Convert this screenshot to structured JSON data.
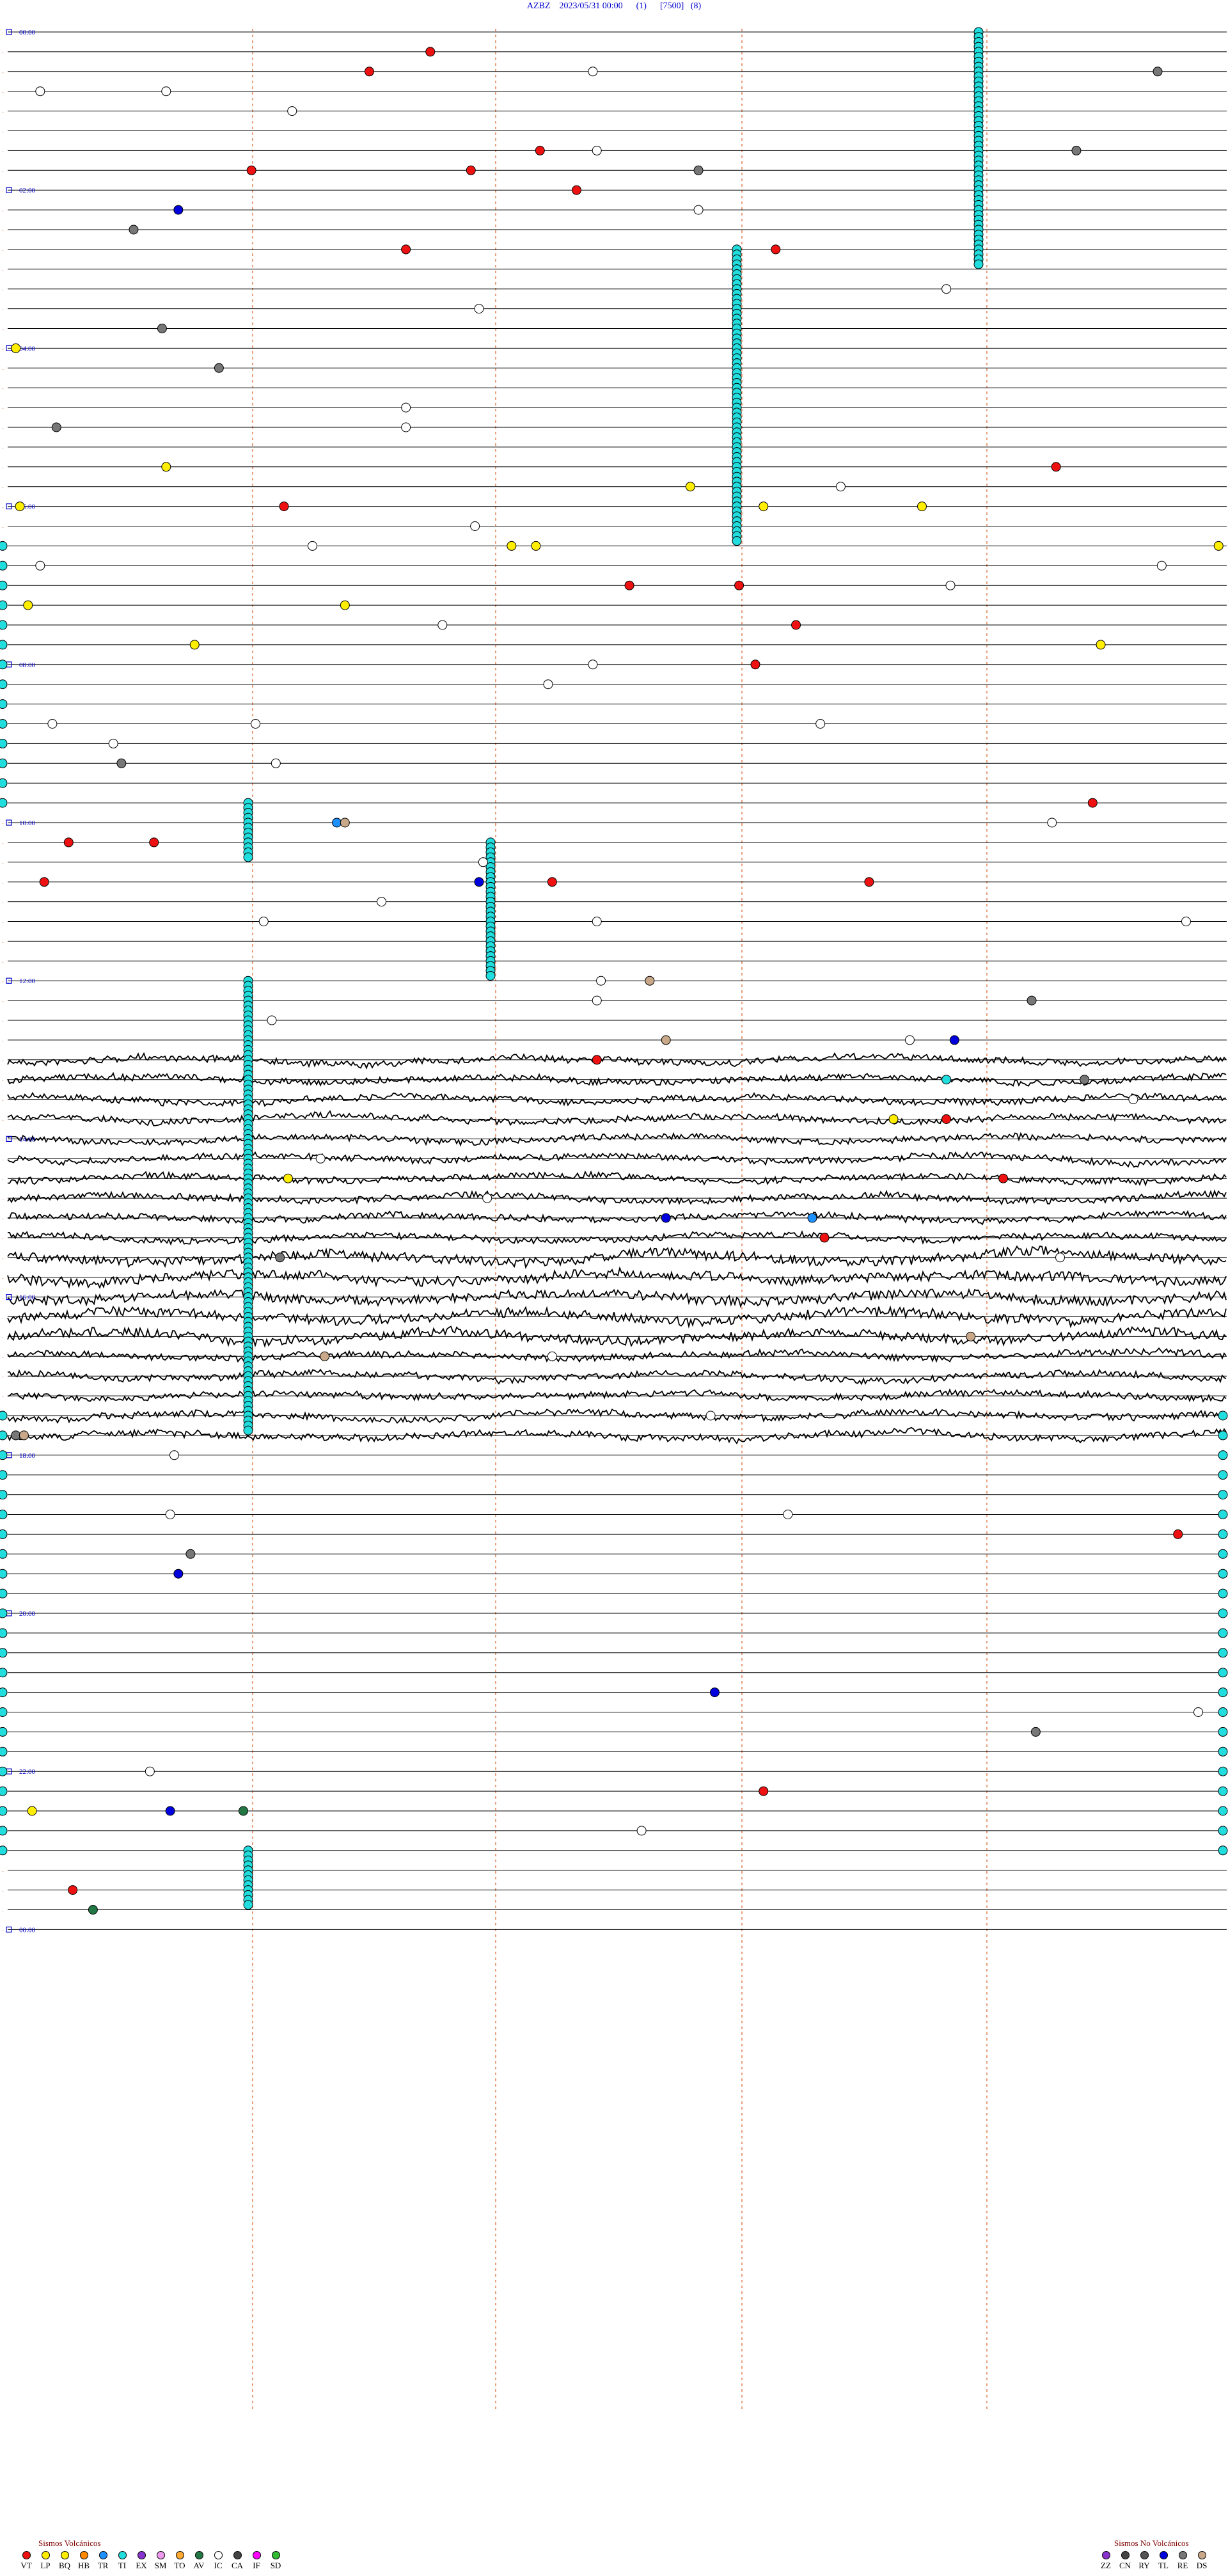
{
  "header": {
    "station": "AZBZ",
    "datetime": "2023/05/31 00:00",
    "f1": "(1)",
    "f2": "[7500]",
    "f3": "(8)"
  },
  "chart_data": {
    "type": "scatter",
    "title": "AZBZ    2023/05/31 00:00      (1)      [7500]   (8)",
    "hour_labels": [
      "00:00",
      "02:00",
      "04:00",
      "06:00",
      "08:00",
      "10:00",
      "12:00",
      "14:00",
      "16:00",
      "18:00",
      "20:00",
      "22:00",
      "00:00"
    ],
    "trace_count": 96,
    "hours_total": 24,
    "colors": {
      "VT": "#ee1111",
      "LP": "#ffee00",
      "BQ": "#ffee00",
      "HB": "#ff8800",
      "TR": "#1e90ff",
      "TI": "#22dddd",
      "EX": "#8833cc",
      "SM": "#ee99ee",
      "TO": "#ffaa33",
      "AV": "#227744",
      "IC": "#ffffff",
      "CA": "#444444",
      "IF": "#ff00ff",
      "SD": "#33bb33",
      "ZZ": "#8833cc",
      "CN": "#444444",
      "RY": "#555555",
      "TL": "#0000dd",
      "RE": "#777777",
      "DS": "#c8a888",
      "trace": "#000000",
      "line": "#000000",
      "grid_vertical": "#e08050",
      "hour_label": "#0000cc"
    },
    "events": [
      {
        "line": 1,
        "min": 10.4,
        "type": "VT"
      },
      {
        "line": 2,
        "min": 8.9,
        "type": "VT"
      },
      {
        "line": 2,
        "min": 14.4,
        "type": "IC"
      },
      {
        "line": 2,
        "min": 28.3,
        "type": "RE"
      },
      {
        "line": 3,
        "min": 3.9,
        "type": "IC"
      },
      {
        "line": 3,
        "min": 0.8,
        "type": "IC"
      },
      {
        "line": 4,
        "min": 7.0,
        "type": "IC"
      },
      {
        "line": 6,
        "min": 14.5,
        "type": "IC"
      },
      {
        "line": 6,
        "min": 13.1,
        "type": "VT"
      },
      {
        "line": 7,
        "min": 6.0,
        "type": "VT"
      },
      {
        "line": 7,
        "min": 17.0,
        "type": "RE"
      },
      {
        "line": 6,
        "min": 26.3,
        "type": "RE"
      },
      {
        "line": 7,
        "min": 11.4,
        "type": "VT"
      },
      {
        "line": 8,
        "min": 14.0,
        "type": "VT"
      },
      {
        "line": 9,
        "min": 4.2,
        "type": "TL"
      },
      {
        "line": 9,
        "min": 17.0,
        "type": "IC"
      },
      {
        "line": 10,
        "min": 3.1,
        "type": "RE"
      },
      {
        "line": 11,
        "min": 9.8,
        "type": "VT"
      },
      {
        "line": 11,
        "min": 18.9,
        "type": "VT"
      },
      {
        "line": 13,
        "min": 23.1,
        "type": "IC"
      },
      {
        "line": 14,
        "min": 11.6,
        "type": "IC"
      },
      {
        "line": 16,
        "min": 0.2,
        "type": "LP"
      },
      {
        "line": 15,
        "min": 3.8,
        "type": "RE"
      },
      {
        "line": 17,
        "min": 5.2,
        "type": "RE"
      },
      {
        "line": 19,
        "min": 9.8,
        "type": "IC"
      },
      {
        "line": 20,
        "min": 9.8,
        "type": "IC"
      },
      {
        "line": 20,
        "min": 1.2,
        "type": "RE"
      },
      {
        "line": 22,
        "min": 25.8,
        "type": "VT"
      },
      {
        "line": 22,
        "min": 3.9,
        "type": "LP"
      },
      {
        "line": 23,
        "min": 16.8,
        "type": "LP"
      },
      {
        "line": 23,
        "min": 20.5,
        "type": "IC"
      },
      {
        "line": 24,
        "min": 6.8,
        "type": "VT"
      },
      {
        "line": 24,
        "min": 0.3,
        "type": "LP"
      },
      {
        "line": 24,
        "min": 22.5,
        "type": "LP"
      },
      {
        "line": 24,
        "min": 18.6,
        "type": "LP"
      },
      {
        "line": 25,
        "min": 11.5,
        "type": "IC"
      },
      {
        "line": 26,
        "min": 7.5,
        "type": "IC"
      },
      {
        "line": 26,
        "min": 12.4,
        "type": "LP"
      },
      {
        "line": 26,
        "min": 13.0,
        "type": "LP"
      },
      {
        "line": 26,
        "min": 29.8,
        "type": "LP"
      },
      {
        "line": 27,
        "min": 0.8,
        "type": "IC"
      },
      {
        "line": 27,
        "min": 28.4,
        "type": "IC"
      },
      {
        "line": 28,
        "min": 15.3,
        "type": "VT"
      },
      {
        "line": 28,
        "min": 18.0,
        "type": "VT"
      },
      {
        "line": 28,
        "min": 23.2,
        "type": "IC"
      },
      {
        "line": 29,
        "min": 0.5,
        "type": "LP"
      },
      {
        "line": 29,
        "min": 8.3,
        "type": "LP"
      },
      {
        "line": 30,
        "min": 10.7,
        "type": "IC"
      },
      {
        "line": 30,
        "min": 19.4,
        "type": "VT"
      },
      {
        "line": 31,
        "min": 26.9,
        "type": "LP"
      },
      {
        "line": 31,
        "min": 4.6,
        "type": "LP"
      },
      {
        "line": 32,
        "min": 18.4,
        "type": "VT"
      },
      {
        "line": 32,
        "min": 14.4,
        "type": "IC"
      },
      {
        "line": 33,
        "min": 13.3,
        "type": "IC"
      },
      {
        "line": 35,
        "min": 1.1,
        "type": "IC"
      },
      {
        "line": 35,
        "min": 6.1,
        "type": "IC"
      },
      {
        "line": 35,
        "min": 20.0,
        "type": "IC"
      },
      {
        "line": 36,
        "min": 2.6,
        "type": "IC"
      },
      {
        "line": 37,
        "min": 6.6,
        "type": "IC"
      },
      {
        "line": 37,
        "min": 2.8,
        "type": "RE"
      },
      {
        "line": 39,
        "min": 26.7,
        "type": "VT"
      },
      {
        "line": 40,
        "min": 25.7,
        "type": "IC"
      },
      {
        "line": 40,
        "min": 8.1,
        "type": "TR"
      },
      {
        "line": 40,
        "min": 8.3,
        "type": "DS"
      },
      {
        "line": 41,
        "min": 1.5,
        "type": "VT"
      },
      {
        "line": 41,
        "min": 3.6,
        "type": "VT"
      },
      {
        "line": 42,
        "min": 11.7,
        "type": "IC"
      },
      {
        "line": 43,
        "min": 11.6,
        "type": "TL"
      },
      {
        "line": 43,
        "min": 21.2,
        "type": "VT"
      },
      {
        "line": 43,
        "min": 0.9,
        "type": "VT"
      },
      {
        "line": 43,
        "min": 13.4,
        "type": "VT"
      },
      {
        "line": 44,
        "min": 9.2,
        "type": "IC"
      },
      {
        "line": 45,
        "min": 6.3,
        "type": "IC"
      },
      {
        "line": 45,
        "min": 14.5,
        "type": "IC"
      },
      {
        "line": 45,
        "min": 29.0,
        "type": "IC"
      },
      {
        "line": 48,
        "min": 14.6,
        "type": "IC"
      },
      {
        "line": 48,
        "min": 15.8,
        "type": "DS"
      },
      {
        "line": 49,
        "min": 14.5,
        "type": "IC"
      },
      {
        "line": 49,
        "min": 25.2,
        "type": "RE"
      },
      {
        "line": 50,
        "min": 6.5,
        "type": "IC"
      },
      {
        "line": 51,
        "min": 22.2,
        "type": "IC"
      },
      {
        "line": 51,
        "min": 23.3,
        "type": "TL"
      },
      {
        "line": 51,
        "min": 16.2,
        "type": "DS"
      },
      {
        "line": 52,
        "min": 14.5,
        "type": "VT"
      },
      {
        "line": 53,
        "min": 26.5,
        "type": "RE"
      },
      {
        "line": 53,
        "min": 23.1,
        "type": "TI"
      },
      {
        "line": 54,
        "min": 27.7,
        "type": "IC"
      },
      {
        "line": 55,
        "min": 23.1,
        "type": "VT"
      },
      {
        "line": 55,
        "min": 21.8,
        "type": "LP"
      },
      {
        "line": 57,
        "min": 7.7,
        "type": "IC"
      },
      {
        "line": 58,
        "min": 6.9,
        "type": "LP"
      },
      {
        "line": 58,
        "min": 24.5,
        "type": "VT"
      },
      {
        "line": 59,
        "min": 11.8,
        "type": "IC"
      },
      {
        "line": 60,
        "min": 16.2,
        "type": "TL"
      },
      {
        "line": 60,
        "min": 19.8,
        "type": "TR"
      },
      {
        "line": 61,
        "min": 20.1,
        "type": "VT"
      },
      {
        "line": 62,
        "min": 25.9,
        "type": "IC"
      },
      {
        "line": 62,
        "min": 6.7,
        "type": "RE"
      },
      {
        "line": 66,
        "min": 23.7,
        "type": "DS"
      },
      {
        "line": 67,
        "min": 7.8,
        "type": "DS"
      },
      {
        "line": 67,
        "min": 13.4,
        "type": "IC"
      },
      {
        "line": 70,
        "min": 17.3,
        "type": "IC"
      },
      {
        "line": 71,
        "min": 0.2,
        "type": "RE"
      },
      {
        "line": 71,
        "min": 0.4,
        "type": "DS"
      },
      {
        "line": 72,
        "min": 4.1,
        "type": "IC"
      },
      {
        "line": 75,
        "min": 4.0,
        "type": "IC"
      },
      {
        "line": 75,
        "min": 19.2,
        "type": "IC"
      },
      {
        "line": 76,
        "min": 28.8,
        "type": "VT"
      },
      {
        "line": 77,
        "min": 4.5,
        "type": "RE"
      },
      {
        "line": 78,
        "min": 4.2,
        "type": "TL"
      },
      {
        "line": 84,
        "min": 17.4,
        "type": "TL"
      },
      {
        "line": 85,
        "min": 29.3,
        "type": "IC"
      },
      {
        "line": 86,
        "min": 25.3,
        "type": "RE"
      },
      {
        "line": 88,
        "min": 3.5,
        "type": "IC"
      },
      {
        "line": 89,
        "min": 18.6,
        "type": "VT"
      },
      {
        "line": 90,
        "min": 0.6,
        "type": "LP"
      },
      {
        "line": 90,
        "min": 4.0,
        "type": "TL"
      },
      {
        "line": 90,
        "min": 5.8,
        "type": "AV"
      },
      {
        "line": 91,
        "min": 15.6,
        "type": "IC"
      },
      {
        "line": 94,
        "min": 1.6,
        "type": "VT"
      },
      {
        "line": 95,
        "min": 2.1,
        "type": "AV"
      }
    ],
    "legend_volcanic": {
      "title": "Sismos Volcánicos",
      "items": [
        "VT",
        "LP",
        "BQ",
        "HB",
        "TR",
        "TI",
        "EX",
        "SM",
        "TO",
        "AV",
        "IC",
        "CA",
        "IF",
        "SD"
      ]
    },
    "legend_nonvolcanic": {
      "title": "Sismos No Volcánicos",
      "items": [
        "ZZ",
        "CN",
        "RY",
        "TL",
        "RE",
        "DS"
      ]
    }
  }
}
